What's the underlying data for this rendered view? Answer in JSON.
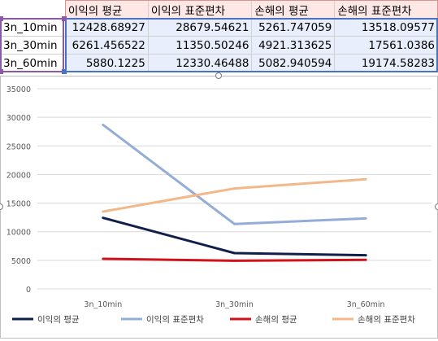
{
  "table": {
    "headers": [
      "이익의 평균",
      "이익의 표준편차",
      "손해의 평균",
      "손해의 표준편차"
    ],
    "rows": [
      {
        "name": "3n_10min",
        "values": [
          "12428.68927",
          "28679.54621",
          "5261.747059",
          "13518.09577"
        ]
      },
      {
        "name": "3n_30min",
        "values": [
          "6261.456522",
          "11350.50246",
          "4921.313625",
          "17561.0386"
        ]
      },
      {
        "name": "3n_60min",
        "values": [
          "5880.1225",
          "12330.46488",
          "5082.940594",
          "19174.58283"
        ]
      }
    ]
  },
  "chart_data": {
    "type": "line",
    "categories": [
      "3n_10min",
      "3n_30min",
      "3n_60min"
    ],
    "ylim": [
      0,
      35000
    ],
    "yticks": [
      "0",
      "5000",
      "10000",
      "15000",
      "20000",
      "25000",
      "30000",
      "35000"
    ],
    "grid": true,
    "legend_position": "bottom",
    "series": [
      {
        "name": "이익의 평균",
        "color": "#10204a",
        "values": [
          12428.68927,
          6261.456522,
          5880.1225
        ]
      },
      {
        "name": "이익의 표준편차",
        "color": "#94add6",
        "values": [
          28679.54621,
          11350.50246,
          12330.46488
        ]
      },
      {
        "name": "손해의 평균",
        "color": "#d0121b",
        "values": [
          5261.747059,
          4921.313625,
          5082.940594
        ]
      },
      {
        "name": "손해의 표준편차",
        "color": "#f2b88a",
        "values": [
          13518.09577,
          17561.0386,
          19174.58283
        ]
      }
    ]
  }
}
